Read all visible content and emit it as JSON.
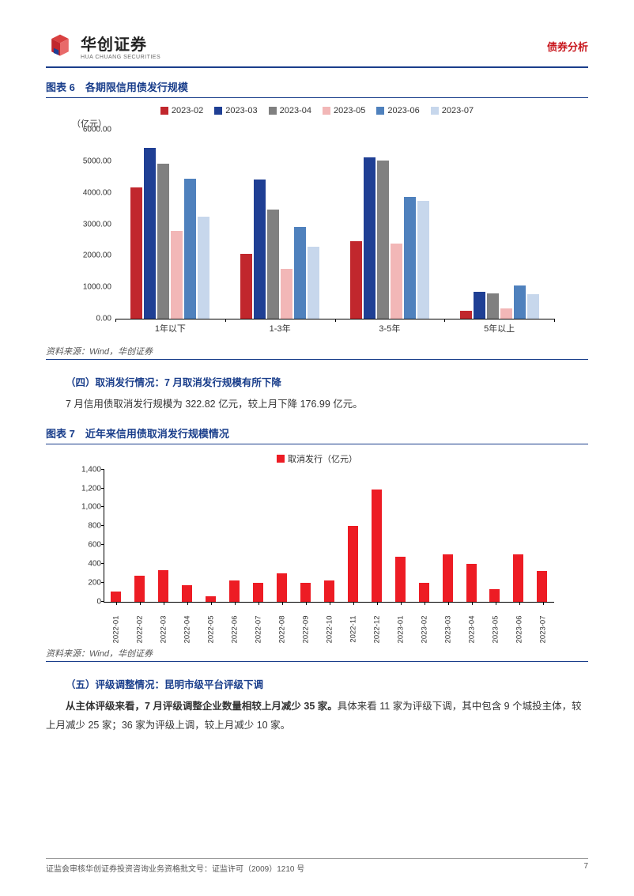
{
  "header": {
    "brand_cn": "华创证券",
    "brand_en": "HUA CHUANG SECURITIES",
    "category": "债券分析",
    "category_color": "#c8161d"
  },
  "chart6": {
    "title": "图表 6　各期限信用债发行规模",
    "type": "grouped-bar",
    "y_axis_label": "（亿元）",
    "ylim": [
      0,
      6000
    ],
    "ytick_step": 1000,
    "yticks": [
      "0.00",
      "1000.00",
      "2000.00",
      "3000.00",
      "4000.00",
      "5000.00",
      "6000.00"
    ],
    "series": [
      {
        "name": "2023-02",
        "color": "#c1272d"
      },
      {
        "name": "2023-03",
        "color": "#1f3f94"
      },
      {
        "name": "2023-04",
        "color": "#808080"
      },
      {
        "name": "2023-05",
        "color": "#f2b7b7"
      },
      {
        "name": "2023-06",
        "color": "#4f81bd"
      },
      {
        "name": "2023-07",
        "color": "#c7d7ec"
      }
    ],
    "categories": [
      "1年以下",
      "1-3年",
      "3-5年",
      "5年以上"
    ],
    "data": [
      [
        4150,
        5400,
        4900,
        2780,
        4430,
        3230
      ],
      [
        2050,
        4400,
        3440,
        1580,
        2910,
        2280
      ],
      [
        2450,
        5100,
        5000,
        2380,
        3850,
        3720
      ],
      [
        260,
        850,
        810,
        320,
        1050,
        780
      ]
    ],
    "caption": "资料来源：Wind，华创证券"
  },
  "section4": {
    "heading": "（四）取消发行情况：7 月取消发行规模有所下降",
    "body": "7 月信用债取消发行规模为 322.82 亿元，较上月下降 176.99 亿元。"
  },
  "chart7": {
    "title": "图表 7　近年来信用债取消发行规模情况",
    "type": "bar",
    "legend_label": "取消发行（亿元）",
    "series_color": "#ed1c24",
    "ylim": [
      0,
      1400
    ],
    "ytick_step": 200,
    "yticks": [
      "0",
      "200",
      "400",
      "600",
      "800",
      "1,000",
      "1,200",
      "1,400"
    ],
    "categories": [
      "2022-01",
      "2022-02",
      "2022-03",
      "2022-04",
      "2022-05",
      "2022-06",
      "2022-07",
      "2022-08",
      "2022-09",
      "2022-10",
      "2022-11",
      "2022-12",
      "2023-01",
      "2023-02",
      "2023-03",
      "2023-04",
      "2023-05",
      "2023-06",
      "2023-07"
    ],
    "values": [
      110,
      270,
      330,
      170,
      60,
      225,
      200,
      295,
      200,
      220,
      800,
      1180,
      470,
      200,
      495,
      395,
      130,
      500,
      323
    ],
    "caption": "资料来源：Wind，华创证券"
  },
  "section5": {
    "heading": "（五）评级调整情况：昆明市级平台评级下调",
    "body_bold": "从主体评级来看，7 月评级调整企业数量相较上月减少 35 家。",
    "body_rest": "具体来看 11 家为评级下调，其中包含 9 个城投主体，较上月减少 25 家；36 家为评级上调，较上月减少 10 家。"
  },
  "footer": {
    "left": "证监会审核华创证券投资咨询业务资格批文号：证监许可（2009）1210 号",
    "page": "7"
  }
}
